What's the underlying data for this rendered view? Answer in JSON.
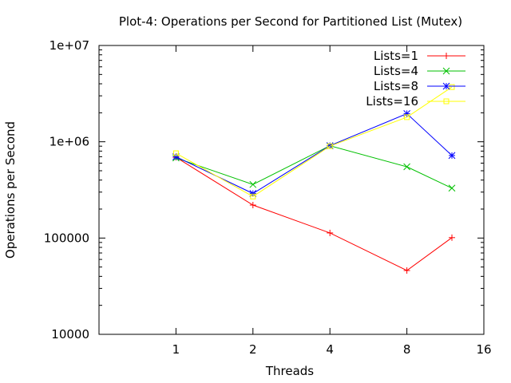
{
  "chart_data": {
    "type": "line",
    "title": "Plot-4: Operations per Second for Partitioned List (Mutex)",
    "xlabel": "Threads",
    "ylabel": "Operations per Second",
    "x_scale": "log2",
    "y_scale": "log10",
    "xlim": [
      0.5,
      16
    ],
    "ylim": [
      10000,
      10000000
    ],
    "x_ticks": [
      1,
      2,
      4,
      8,
      16
    ],
    "x_tick_labels": [
      "1",
      "2",
      "4",
      "8",
      "16"
    ],
    "y_ticks": [
      10000,
      100000,
      1000000,
      10000000
    ],
    "y_tick_labels": [
      "10000",
      "100000",
      "1e+06",
      "1e+07"
    ],
    "grid": false,
    "legend_position": "top-right",
    "x": [
      1,
      2,
      4,
      8,
      12
    ],
    "series": [
      {
        "name": "Lists=1",
        "color": "#ff0000",
        "marker": "plus",
        "values": [
          690000,
          220000,
          113000,
          46000,
          101000
        ]
      },
      {
        "name": "Lists=4",
        "color": "#00c000",
        "marker": "cross",
        "values": [
          680000,
          360000,
          910000,
          550000,
          330000
        ]
      },
      {
        "name": "Lists=8",
        "color": "#0000ff",
        "marker": "star",
        "values": [
          700000,
          290000,
          910000,
          1960000,
          720000
        ]
      },
      {
        "name": "Lists=16",
        "color": "#ffff00",
        "marker": "square",
        "values": [
          760000,
          270000,
          900000,
          1800000,
          3700000
        ]
      }
    ]
  }
}
